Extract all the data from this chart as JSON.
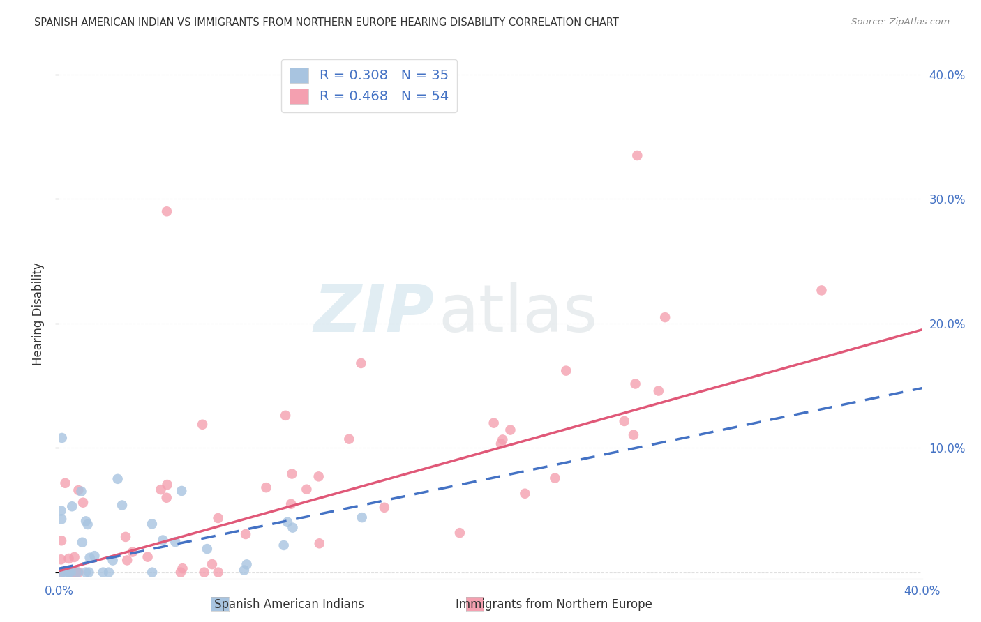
{
  "title": "SPANISH AMERICAN INDIAN VS IMMIGRANTS FROM NORTHERN EUROPE HEARING DISABILITY CORRELATION CHART",
  "source": "Source: ZipAtlas.com",
  "ylabel": "Hearing Disability",
  "xlim": [
    0.0,
    0.4
  ],
  "ylim": [
    -0.005,
    0.42
  ],
  "ytick_positions": [
    0.0,
    0.1,
    0.2,
    0.3,
    0.4
  ],
  "xtick_positions": [
    0.0,
    0.1,
    0.2,
    0.3,
    0.4
  ],
  "series1_label": "Spanish American Indians",
  "series2_label": "Immigrants from Northern Europe",
  "R1": 0.308,
  "N1": 35,
  "R2": 0.468,
  "N2": 54,
  "color1": "#a8c4e0",
  "color2": "#f4a0b0",
  "line1_color": "#4472c4",
  "line2_color": "#e05878",
  "line1_style": "--",
  "line2_style": "-",
  "watermark_zip": "ZIP",
  "watermark_atlas": "atlas",
  "background_color": "#ffffff",
  "grid_color": "#cccccc",
  "title_color": "#333333",
  "tick_label_color": "#4472c4",
  "ylabel_color": "#333333",
  "source_color": "#888888",
  "legend_text_color": "#4472c4",
  "line1_y_at_x0": 0.003,
  "line1_y_at_x40": 0.148,
  "line2_y_at_x0": 0.001,
  "line2_y_at_x40": 0.195
}
